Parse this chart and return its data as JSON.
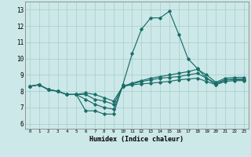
{
  "xlabel": "Humidex (Indice chaleur)",
  "bg_color": "#cce8e8",
  "grid_color": "#aacccc",
  "line_color": "#1a6e6a",
  "xlim": [
    -0.5,
    23.5
  ],
  "ylim": [
    5.7,
    13.5
  ],
  "xticks": [
    0,
    1,
    2,
    3,
    4,
    5,
    6,
    7,
    8,
    9,
    10,
    11,
    12,
    13,
    14,
    15,
    16,
    17,
    18,
    19,
    20,
    21,
    22,
    23
  ],
  "yticks": [
    6,
    7,
    8,
    9,
    10,
    11,
    12,
    13
  ],
  "line1_x": [
    0,
    1,
    2,
    3,
    4,
    5,
    6,
    7,
    8,
    9,
    10,
    11,
    12,
    13,
    14,
    15,
    16,
    17,
    18,
    19,
    20,
    21,
    22,
    23
  ],
  "line1_y": [
    8.3,
    8.4,
    8.1,
    8.0,
    7.8,
    7.8,
    6.8,
    6.8,
    6.6,
    6.6,
    8.4,
    10.3,
    11.8,
    12.5,
    12.5,
    12.9,
    11.5,
    10.0,
    9.4,
    8.8,
    8.4,
    8.7,
    8.7,
    8.7
  ],
  "line2_x": [
    0,
    1,
    2,
    3,
    4,
    5,
    6,
    7,
    8,
    9,
    10,
    11,
    12,
    13,
    14,
    15,
    16,
    17,
    18,
    19,
    20,
    21,
    22,
    23
  ],
  "line2_y": [
    8.3,
    8.4,
    8.1,
    8.0,
    7.8,
    7.8,
    7.5,
    7.2,
    7.0,
    6.9,
    8.3,
    8.4,
    8.45,
    8.5,
    8.55,
    8.6,
    8.7,
    8.75,
    8.8,
    8.6,
    8.4,
    8.6,
    8.65,
    8.65
  ],
  "line3_x": [
    0,
    1,
    2,
    3,
    4,
    5,
    6,
    7,
    8,
    9,
    10,
    11,
    12,
    13,
    14,
    15,
    16,
    17,
    18,
    19,
    20,
    21,
    22,
    23
  ],
  "line3_y": [
    8.3,
    8.4,
    8.1,
    8.0,
    7.8,
    7.8,
    7.8,
    7.5,
    7.4,
    7.2,
    8.3,
    8.45,
    8.6,
    8.7,
    8.8,
    8.85,
    8.9,
    9.0,
    9.1,
    8.8,
    8.5,
    8.7,
    8.75,
    8.75
  ],
  "line4_x": [
    0,
    1,
    2,
    3,
    4,
    5,
    6,
    7,
    8,
    9,
    10,
    11,
    12,
    13,
    14,
    15,
    16,
    17,
    18,
    19,
    20,
    21,
    22,
    23
  ],
  "line4_y": [
    8.3,
    8.4,
    8.1,
    8.0,
    7.8,
    7.8,
    7.9,
    7.8,
    7.6,
    7.4,
    8.3,
    8.5,
    8.65,
    8.8,
    8.9,
    9.0,
    9.1,
    9.2,
    9.35,
    9.0,
    8.55,
    8.8,
    8.85,
    8.85
  ]
}
